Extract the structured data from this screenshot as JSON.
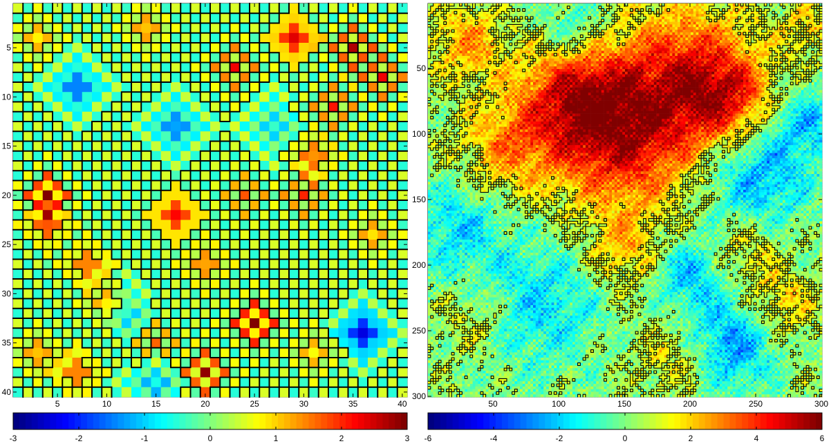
{
  "chart_data": [
    {
      "type": "heatmap",
      "title": "",
      "xlabel": "",
      "ylabel": "",
      "grid_size": 40,
      "xlim": [
        0.5,
        40.5
      ],
      "ylim": [
        0.5,
        40.5
      ],
      "y_direction": "reversed",
      "xticks": [
        5,
        10,
        15,
        20,
        25,
        30,
        35,
        40
      ],
      "yticks": [
        5,
        10,
        15,
        20,
        25,
        30,
        35,
        40
      ],
      "colorbar": {
        "min": -3,
        "max": 3,
        "ticks": [
          -3,
          -2,
          -1,
          0,
          1,
          2,
          3
        ],
        "colormap": "jet",
        "levels": 64
      },
      "contour_level": 0.5,
      "contour_color": "#000000",
      "high_regions": [
        {
          "c": 3,
          "r": 4,
          "h": 1.4
        },
        {
          "c": 14,
          "r": 3,
          "h": 1.6
        },
        {
          "c": 23,
          "r": 7,
          "h": 1.8
        },
        {
          "c": 29,
          "r": 4,
          "h": 3.0
        },
        {
          "c": 35,
          "r": 5,
          "h": 2.2
        },
        {
          "c": 38,
          "r": 8,
          "h": 1.8
        },
        {
          "c": 33,
          "r": 11,
          "h": 1.6
        },
        {
          "c": 31,
          "r": 16,
          "h": 1.9
        },
        {
          "c": 30,
          "r": 20,
          "h": 1.5
        },
        {
          "c": 4,
          "r": 20,
          "h": 2.6
        },
        {
          "c": 4,
          "r": 23,
          "h": 2.0
        },
        {
          "c": 17,
          "r": 22,
          "h": 2.8
        },
        {
          "c": 24,
          "r": 20,
          "h": 1.2
        },
        {
          "c": 8,
          "r": 27,
          "h": 2.0
        },
        {
          "c": 20,
          "r": 27,
          "h": 1.8
        },
        {
          "c": 10,
          "r": 31,
          "h": 1.5
        },
        {
          "c": 25,
          "r": 33,
          "h": 3.0
        },
        {
          "c": 3,
          "r": 36,
          "h": 1.6
        },
        {
          "c": 7,
          "r": 38,
          "h": 2.0
        },
        {
          "c": 20,
          "r": 38,
          "h": 2.4
        },
        {
          "c": 15,
          "r": 35,
          "h": 1.2
        },
        {
          "c": 31,
          "r": 36,
          "h": 1.3
        },
        {
          "c": 37,
          "r": 24,
          "h": 1.5
        }
      ],
      "low_regions": [
        {
          "c": 7,
          "r": 9,
          "h": -2.0
        },
        {
          "c": 17,
          "r": 13,
          "h": -1.8
        },
        {
          "c": 36,
          "r": 34,
          "h": -3.0
        },
        {
          "c": 12,
          "r": 32,
          "h": -1.2
        },
        {
          "c": 27,
          "r": 13,
          "h": -1.0
        },
        {
          "c": 15,
          "r": 39,
          "h": -1.3
        }
      ]
    },
    {
      "type": "heatmap",
      "title": "",
      "xlabel": "",
      "ylabel": "",
      "grid_size": 300,
      "xlim": [
        0.5,
        300.5
      ],
      "ylim": [
        0.5,
        300.5
      ],
      "y_direction": "reversed",
      "xticks": [
        50,
        100,
        150,
        200,
        250,
        300
      ],
      "yticks": [
        50,
        100,
        150,
        200,
        250,
        300
      ],
      "colorbar": {
        "min": -6,
        "max": 6,
        "ticks": [
          -6,
          -4,
          -2,
          0,
          2,
          4,
          6
        ],
        "colormap": "jet",
        "levels": 64
      },
      "contour_level": 1.0,
      "contour_color": "#000000",
      "high_regions": [
        {
          "x": 150,
          "y": 100,
          "h": 4.5,
          "s": 40
        },
        {
          "x": 110,
          "y": 70,
          "h": 3.5,
          "s": 30
        },
        {
          "x": 200,
          "y": 50,
          "h": 3.2,
          "s": 35
        },
        {
          "x": 230,
          "y": 75,
          "h": 3.0,
          "s": 25
        },
        {
          "x": 60,
          "y": 110,
          "h": 2.2,
          "s": 25
        },
        {
          "x": 30,
          "y": 30,
          "h": 2.2,
          "s": 20
        },
        {
          "x": 150,
          "y": 190,
          "h": 1.8,
          "s": 20
        },
        {
          "x": 270,
          "y": 230,
          "h": 1.8,
          "s": 18
        },
        {
          "x": 190,
          "y": 270,
          "h": 1.6,
          "s": 20
        },
        {
          "x": 40,
          "y": 240,
          "h": 1.5,
          "s": 20
        },
        {
          "x": 240,
          "y": 190,
          "h": 1.5,
          "s": 20
        },
        {
          "x": 290,
          "y": 20,
          "h": 1.5,
          "s": 15
        }
      ],
      "low_regions": [
        {
          "x": 250,
          "y": 130,
          "h": -2.8,
          "s": 30
        },
        {
          "x": 230,
          "y": 260,
          "h": -3.0,
          "s": 25
        },
        {
          "x": 80,
          "y": 230,
          "h": -2.2,
          "s": 35
        },
        {
          "x": 290,
          "y": 90,
          "h": -2.0,
          "s": 20
        },
        {
          "x": 20,
          "y": 170,
          "h": -2.0,
          "s": 25
        },
        {
          "x": 200,
          "y": 205,
          "h": -2.4,
          "s": 20
        },
        {
          "x": 110,
          "y": 20,
          "h": -1.8,
          "s": 20
        }
      ]
    }
  ]
}
